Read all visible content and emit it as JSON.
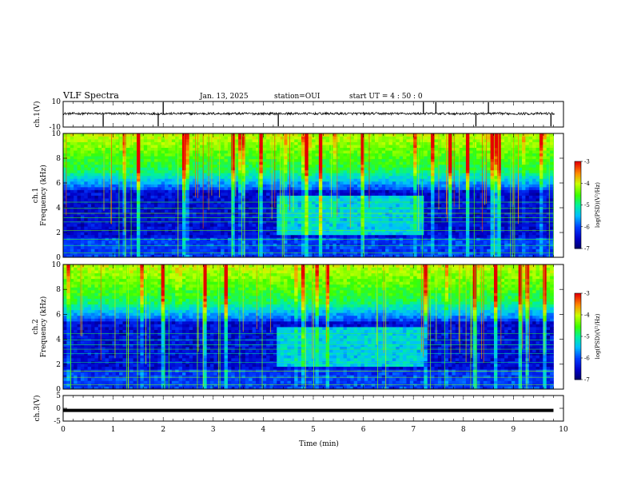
{
  "header": {
    "title": "VLF Spectra",
    "date": "Jan. 13, 2025",
    "station": "station=OUI",
    "start": "start UT =  4 : 50 : 0"
  },
  "colors": {
    "low": "#00006a",
    "mid": "#00e000",
    "high": "#ff0000"
  },
  "chart_data": [
    {
      "type": "line",
      "name": "ch1-waveform",
      "ylabel": "ch.1(V)",
      "xlim": [
        0,
        10
      ],
      "ylim": [
        -10,
        10
      ],
      "yticks": [
        "10",
        "-10"
      ],
      "baseline": 0.5,
      "spike_times": [
        0.8,
        1.9,
        2.0,
        4.3,
        7.2,
        7.45,
        8.25,
        8.5,
        9.75
      ]
    },
    {
      "type": "heatmap",
      "name": "ch1-spectrogram",
      "ylabel": "ch.1\nFrequency (kHz)",
      "xlim": [
        0,
        10
      ],
      "ylim": [
        0,
        10
      ],
      "yticks": [
        "0",
        "2",
        "4",
        "6",
        "8",
        "10"
      ],
      "colorbar": {
        "label": "log(PSD)(V²/Hz)",
        "range": [
          -7,
          -3
        ],
        "ticks": [
          "-3",
          "-4",
          "-5",
          "-6",
          "-7"
        ]
      },
      "data_end": 9.8,
      "event_window": [
        4.3,
        7.2
      ]
    },
    {
      "type": "heatmap",
      "name": "ch2-spectrogram",
      "ylabel": "ch.2\nFrequency (kHz)",
      "xlim": [
        0,
        10
      ],
      "ylim": [
        0,
        10
      ],
      "yticks": [
        "0",
        "2",
        "4",
        "6",
        "8",
        "10"
      ],
      "colorbar": {
        "label": "log(PSD)(V²/Hz)",
        "range": [
          -7,
          -3
        ],
        "ticks": [
          "-3",
          "-4",
          "-5",
          "-6",
          "-7"
        ]
      },
      "data_end": 9.8,
      "event_window": [
        4.3,
        7.2
      ]
    },
    {
      "type": "line",
      "name": "ch3-waveform",
      "ylabel": "ch.3(V)",
      "xlim": [
        0,
        10
      ],
      "ylim": [
        -5,
        5
      ],
      "yticks": [
        "5",
        "0",
        "-5"
      ],
      "values": [
        -0.8,
        -0.8
      ],
      "x": [
        0,
        9.8
      ]
    }
  ],
  "xaxis": {
    "label": "Time (min)",
    "ticks": [
      "0",
      "1",
      "2",
      "3",
      "4",
      "5",
      "6",
      "7",
      "8",
      "9",
      "10"
    ]
  }
}
